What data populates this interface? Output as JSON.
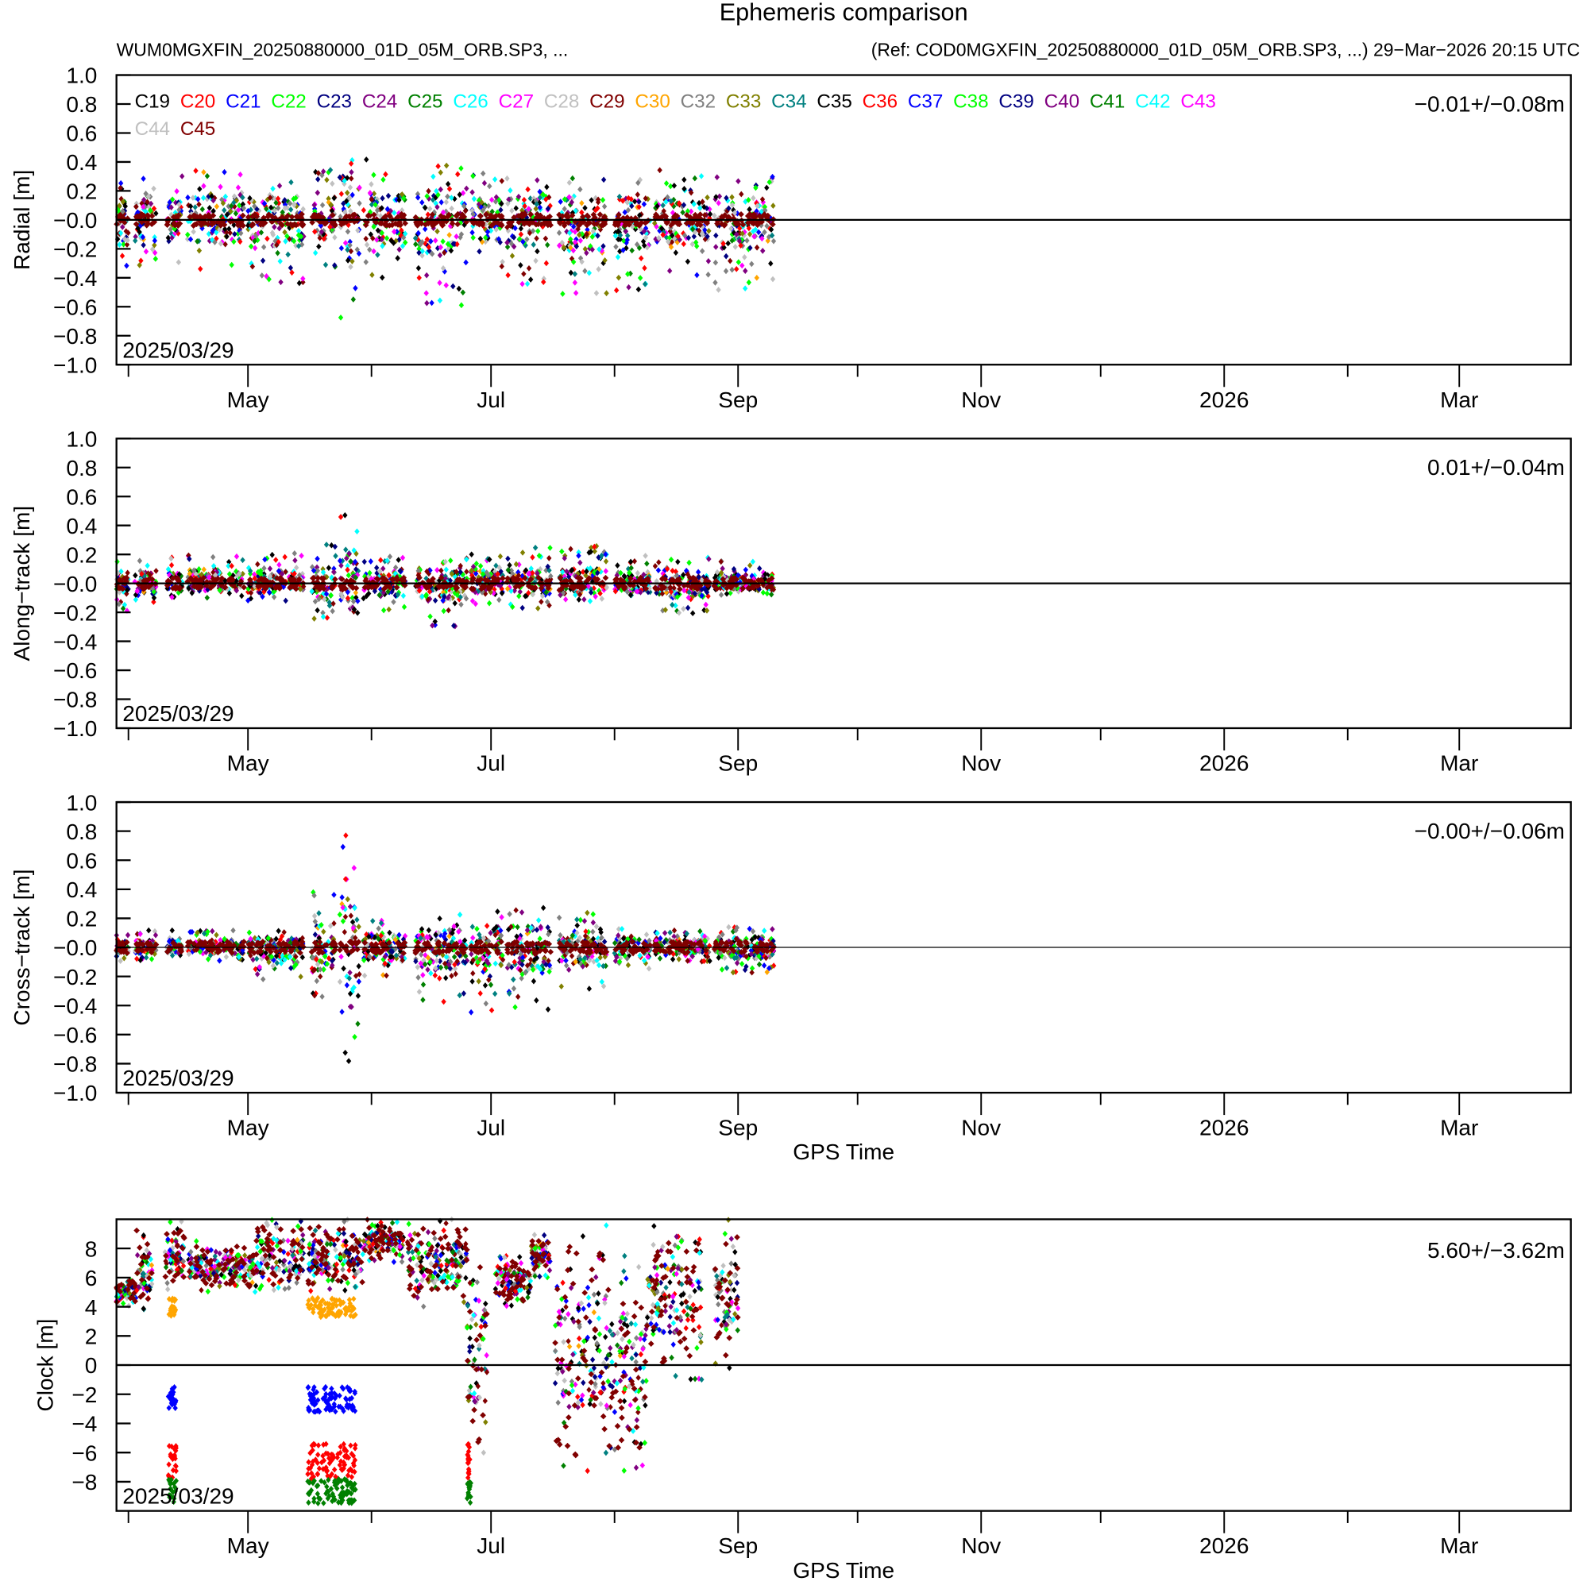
{
  "title": "Ephemeris comparison",
  "subtitle_left": "WUM0MGXFIN_20250880000_01D_05M_ORB.SP3, ...",
  "subtitle_right": "(Ref: COD0MGXFIN_20250880000_01D_05M_ORB.SP3, ...) 29−Mar−2026 20:15 UTC",
  "x_axis_label": "GPS Time",
  "start_date_label": "2025/03/29",
  "legend": [
    {
      "name": "C19",
      "color": "#000000"
    },
    {
      "name": "C20",
      "color": "#ff0000"
    },
    {
      "name": "C21",
      "color": "#0000ff"
    },
    {
      "name": "C22",
      "color": "#00ff00"
    },
    {
      "name": "C23",
      "color": "#000080"
    },
    {
      "name": "C24",
      "color": "#800080"
    },
    {
      "name": "C25",
      "color": "#008000"
    },
    {
      "name": "C26",
      "color": "#00ffff"
    },
    {
      "name": "C27",
      "color": "#ff00ff"
    },
    {
      "name": "C28",
      "color": "#c0c0c0"
    },
    {
      "name": "C29",
      "color": "#800000"
    },
    {
      "name": "C30",
      "color": "#ffa500"
    },
    {
      "name": "C32",
      "color": "#808080"
    },
    {
      "name": "C33",
      "color": "#808000"
    },
    {
      "name": "C34",
      "color": "#008080"
    },
    {
      "name": "C35",
      "color": "#000000"
    },
    {
      "name": "C36",
      "color": "#ff0000"
    },
    {
      "name": "C37",
      "color": "#0000ff"
    },
    {
      "name": "C38",
      "color": "#00ff00"
    },
    {
      "name": "C39",
      "color": "#000080"
    },
    {
      "name": "C40",
      "color": "#800080"
    },
    {
      "name": "C41",
      "color": "#008000"
    },
    {
      "name": "C42",
      "color": "#00ffff"
    },
    {
      "name": "C43",
      "color": "#ff00ff"
    },
    {
      "name": "C44",
      "color": "#c0c0c0"
    },
    {
      "name": "C45",
      "color": "#800000"
    }
  ],
  "chart_data": [
    {
      "type": "scatter",
      "ylabel": "Radial [m]",
      "ylim": [
        -1.0,
        1.0
      ],
      "yticks": [
        "1.0",
        "0.8",
        "0.6",
        "0.4",
        "0.2",
        "−0.0",
        "−0.2",
        "−0.4",
        "−0.6",
        "−0.8",
        "−1.0"
      ],
      "xticks": [
        "May",
        "Jul",
        "Sep",
        "Nov",
        "2026",
        "Mar"
      ],
      "xlim_days": [
        0,
        365
      ],
      "x_start": "2025-03-29",
      "stat": "−0.01+/−0.08m",
      "segments_days_lo_hi": [
        [
          0,
          3,
          -0.4,
          0.35
        ],
        [
          4.6,
          10,
          -0.35,
          0.3
        ],
        [
          12.7,
          16.5,
          -0.3,
          0.35
        ],
        [
          17.8,
          32,
          -0.35,
          0.37
        ],
        [
          33,
          47,
          -0.45,
          0.3
        ],
        [
          49,
          55,
          -0.35,
          0.35
        ],
        [
          56,
          61,
          -0.68,
          0.68
        ],
        [
          62,
          72.5,
          -0.4,
          0.42
        ],
        [
          75,
          88,
          -0.6,
          0.42
        ],
        [
          89,
          97,
          -0.35,
          0.35
        ],
        [
          98,
          109,
          -0.45,
          0.32
        ],
        [
          111,
          123,
          -0.55,
          0.3
        ],
        [
          125,
          134,
          -0.5,
          0.28
        ],
        [
          135,
          149,
          -0.4,
          0.35
        ],
        [
          150,
          165,
          -0.52,
          0.3
        ]
      ]
    },
    {
      "type": "scatter",
      "ylabel": "Along−track [m]",
      "ylim": [
        -1.0,
        1.0
      ],
      "yticks": [
        "1.0",
        "0.8",
        "0.6",
        "0.4",
        "0.2",
        "−0.0",
        "−0.2",
        "−0.4",
        "−0.6",
        "−0.8",
        "−1.0"
      ],
      "xticks": [
        "May",
        "Jul",
        "Sep",
        "Nov",
        "2026",
        "Mar"
      ],
      "xlim_days": [
        0,
        365
      ],
      "x_start": "2025-03-29",
      "stat": "0.01+/−0.04m",
      "segments_days_lo_hi": [
        [
          0,
          3,
          -0.2,
          0.15
        ],
        [
          4.6,
          10,
          -0.18,
          0.2
        ],
        [
          12.7,
          16.5,
          -0.1,
          0.18
        ],
        [
          17.8,
          32,
          -0.1,
          0.2
        ],
        [
          33,
          47,
          -0.12,
          0.22
        ],
        [
          49,
          55,
          -0.25,
          0.28
        ],
        [
          56,
          61,
          -0.38,
          0.52
        ],
        [
          62,
          72.5,
          -0.2,
          0.2
        ],
        [
          75,
          88,
          -0.3,
          0.18
        ],
        [
          89,
          97,
          -0.15,
          0.22
        ],
        [
          98,
          109,
          -0.18,
          0.25
        ],
        [
          111,
          123,
          -0.15,
          0.26
        ],
        [
          125,
          134,
          -0.12,
          0.2
        ],
        [
          135,
          149,
          -0.24,
          0.18
        ],
        [
          150,
          165,
          -0.08,
          0.16
        ]
      ]
    },
    {
      "type": "scatter",
      "ylabel": "Cross−track [m]",
      "ylim": [
        -1.0,
        1.0
      ],
      "yticks": [
        "1.0",
        "0.8",
        "0.6",
        "0.4",
        "0.2",
        "−0.0",
        "−0.2",
        "−0.4",
        "−0.6",
        "−0.8",
        "−1.0"
      ],
      "xticks": [
        "May",
        "Jul",
        "Sep",
        "Nov",
        "2026",
        "Mar"
      ],
      "xlim_days": [
        0,
        365
      ],
      "x_start": "2025-03-29",
      "stat": "−0.00+/−0.06m",
      "segments_days_lo_hi": [
        [
          0,
          3,
          -0.1,
          0.1
        ],
        [
          4.6,
          10,
          -0.1,
          0.12
        ],
        [
          12.7,
          16.5,
          -0.08,
          0.12
        ],
        [
          17.8,
          32,
          -0.1,
          0.12
        ],
        [
          33,
          47,
          -0.22,
          0.12
        ],
        [
          49,
          55,
          -0.35,
          0.38
        ],
        [
          56,
          61,
          -0.82,
          0.78
        ],
        [
          62,
          72.5,
          -0.2,
          0.22
        ],
        [
          75,
          88,
          -0.4,
          0.24
        ],
        [
          89,
          97,
          -0.45,
          0.27
        ],
        [
          98,
          109,
          -0.48,
          0.28
        ],
        [
          111,
          123,
          -0.3,
          0.24
        ],
        [
          125,
          134,
          -0.15,
          0.15
        ],
        [
          135,
          149,
          -0.1,
          0.12
        ],
        [
          150,
          165,
          -0.18,
          0.15
        ]
      ]
    },
    {
      "type": "scatter",
      "ylabel": "Clock [m]",
      "ylim": [
        -10,
        10
      ],
      "yticks": [
        "8",
        "6",
        "4",
        "2",
        "0",
        "−2",
        "−4",
        "−6",
        "−8"
      ],
      "xticks": [
        "May",
        "Jul",
        "Sep",
        "Nov",
        "2026",
        "Mar"
      ],
      "xlim_days": [
        0,
        365
      ],
      "x_start": "2025-03-29",
      "stat": "5.60+/−3.62m",
      "segments_days_lo_hi": [
        [
          0,
          5,
          4,
          6
        ],
        [
          5,
          9,
          3,
          10
        ],
        [
          12,
          17,
          5,
          10
        ],
        [
          18,
          35,
          5,
          8.5
        ],
        [
          35,
          47,
          5,
          10
        ],
        [
          48,
          62,
          5,
          10
        ],
        [
          62,
          72,
          7,
          10
        ],
        [
          73,
          88,
          4,
          10
        ],
        [
          88,
          93,
          -7,
          9
        ],
        [
          95,
          104,
          4,
          7.5
        ],
        [
          104,
          109,
          6,
          9
        ],
        [
          110,
          125,
          -8,
          10
        ],
        [
          125,
          133,
          -7.5,
          8
        ],
        [
          133,
          147,
          -1,
          10
        ],
        [
          150,
          156,
          -0.5,
          10
        ]
      ],
      "outliers": [
        {
          "satellite": "C30",
          "days": [
            [
              13,
              15
            ],
            [
              48,
              60
            ]
          ],
          "range": [
            3.3,
            4.6
          ]
        },
        {
          "satellite": "C21",
          "days": [
            [
              13,
              15
            ],
            [
              48,
              60
            ]
          ],
          "range": [
            -3.2,
            -1.5
          ]
        },
        {
          "satellite": "C20",
          "days": [
            [
              13,
              15
            ],
            [
              48,
              60
            ],
            [
              88,
              89
            ]
          ],
          "range": [
            -7.8,
            -5.4
          ]
        },
        {
          "satellite": "C25",
          "days": [
            [
              13,
              15
            ],
            [
              48,
              60
            ],
            [
              88,
              89
            ]
          ],
          "range": [
            -9.5,
            -7.8
          ]
        }
      ]
    }
  ]
}
